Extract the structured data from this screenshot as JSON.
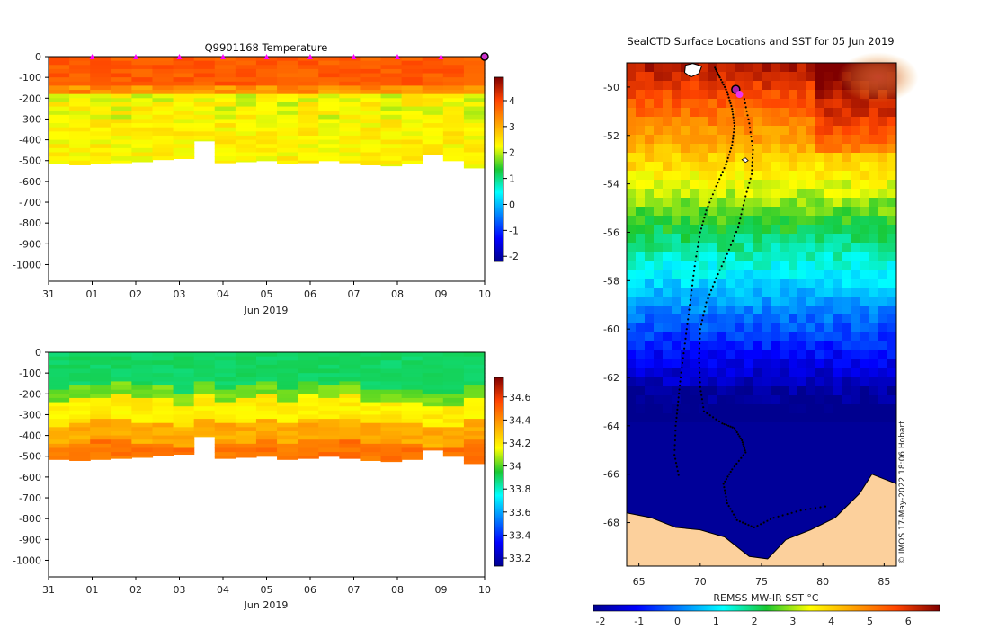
{
  "chart_data": [
    {
      "type": "heatmap",
      "title": "Q9901168  Temperature",
      "xlabel": "Jun 2019",
      "ylabel": "",
      "x_ticks": [
        "31",
        "01",
        "02",
        "03",
        "04",
        "05",
        "06",
        "07",
        "08",
        "09",
        "10"
      ],
      "y_ticks": [
        0,
        -100,
        -200,
        -300,
        -400,
        -500,
        -600,
        -700,
        -800,
        -900,
        -1000
      ],
      "ylim": [
        -1080,
        0
      ],
      "colorbar_ticks": [
        4,
        3,
        2,
        1,
        0,
        -1,
        -2
      ],
      "colorbar_range": [
        -2.2,
        4.9
      ],
      "profile_marker_days": [
        1,
        2,
        3,
        4,
        5,
        6,
        7,
        8,
        9
      ],
      "max_depth_per_profile": [
        -515,
        -520,
        -515,
        -510,
        -505,
        -495,
        -490,
        -405,
        -510,
        -505,
        -500,
        -515,
        -510,
        -500,
        -510,
        -520,
        -525,
        -515,
        -470,
        -500,
        -535
      ]
    },
    {
      "type": "heatmap",
      "title": "",
      "xlabel": "Jun 2019",
      "ylabel": "",
      "x_ticks": [
        "31",
        "01",
        "02",
        "03",
        "04",
        "05",
        "06",
        "07",
        "08",
        "09",
        "10"
      ],
      "y_ticks": [
        0,
        -100,
        -200,
        -300,
        -400,
        -500,
        -600,
        -700,
        -800,
        -900,
        -1000
      ],
      "ylim": [
        -1080,
        0
      ],
      "colorbar_ticks": [
        "34.6",
        "34.4",
        "34.2",
        "34",
        "33.8",
        "33.6",
        "33.4",
        "33.2"
      ],
      "colorbar_range": [
        33.13,
        34.77
      ]
    },
    {
      "type": "heatmap",
      "title": "SealCTD Surface Locations and SST for 05 Jun 2019",
      "x_ticks": [
        "65",
        "70",
        "75",
        "80",
        "85"
      ],
      "y_ticks": [
        "-50",
        "-52",
        "-54",
        "-56",
        "-58",
        "-60",
        "-62",
        "-64",
        "-66",
        "-68"
      ],
      "xlim": [
        64,
        86
      ],
      "ylim": [
        -69.8,
        -49
      ],
      "colorbar_label": "REMSS MW-IR SST °C",
      "colorbar_ticks": [
        "-2",
        "-1",
        "0",
        "1",
        "2",
        "3",
        "4",
        "5",
        "6"
      ],
      "colorbar_range": [
        -2,
        7
      ],
      "credit": "© IMOS 17-May-2022 18:06 Hobart",
      "track": [
        [
          71.2,
          -49.2
        ],
        [
          71.6,
          -49.6
        ],
        [
          72.2,
          -50.2
        ],
        [
          72.6,
          -50.9
        ],
        [
          72.8,
          -51.6
        ],
        [
          72.6,
          -52.4
        ],
        [
          72.1,
          -53.2
        ],
        [
          71.3,
          -54.1
        ],
        [
          70.5,
          -55.1
        ],
        [
          70.0,
          -56.0
        ],
        [
          69.6,
          -57.2
        ],
        [
          69.3,
          -58.4
        ],
        [
          69.0,
          -59.6
        ],
        [
          68.7,
          -60.8
        ],
        [
          68.4,
          -62.0
        ],
        [
          68.2,
          -63.0
        ],
        [
          68.0,
          -64.0
        ],
        [
          67.9,
          -65.2
        ],
        [
          68.3,
          -66.2
        ]
      ],
      "track2": [
        [
          73.6,
          -50.5
        ],
        [
          74.0,
          -51.5
        ],
        [
          74.3,
          -52.6
        ],
        [
          74.2,
          -53.6
        ],
        [
          73.6,
          -54.7
        ],
        [
          73.1,
          -55.8
        ],
        [
          72.2,
          -56.9
        ],
        [
          71.3,
          -57.9
        ],
        [
          70.5,
          -58.9
        ],
        [
          70.0,
          -60.0
        ],
        [
          69.9,
          -61.2
        ],
        [
          70.0,
          -62.4
        ],
        [
          70.3,
          -63.4
        ],
        [
          71.8,
          -63.9
        ],
        [
          72.8,
          -64.1
        ],
        [
          73.4,
          -64.6
        ],
        [
          73.7,
          -65.1
        ],
        [
          72.6,
          -65.8
        ],
        [
          71.9,
          -66.4
        ],
        [
          72.2,
          -67.2
        ],
        [
          73.0,
          -67.9
        ],
        [
          74.4,
          -68.2
        ],
        [
          76.0,
          -67.8
        ],
        [
          78.2,
          -67.5
        ],
        [
          80.6,
          -67.3
        ]
      ],
      "surface_locations": [
        [
          72.9,
          -50.1
        ],
        [
          73.2,
          -50.3
        ]
      ]
    }
  ]
}
